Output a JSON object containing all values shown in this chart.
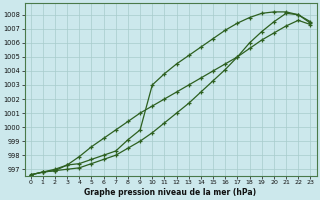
{
  "xlabel": "Graphe pression niveau de la mer (hPa)",
  "bg_color": "#cce8ec",
  "grid_color": "#a8cccc",
  "line_color": "#2d6020",
  "x_ticks": [
    0,
    1,
    2,
    3,
    4,
    5,
    6,
    7,
    8,
    9,
    10,
    11,
    12,
    13,
    14,
    15,
    16,
    17,
    18,
    19,
    20,
    21,
    22,
    23
  ],
  "ylim": [
    996.5,
    1008.8
  ],
  "yticks": [
    997,
    998,
    999,
    1000,
    1001,
    1002,
    1003,
    1004,
    1005,
    1006,
    1007,
    1008
  ],
  "series1": [
    996.6,
    996.8,
    996.9,
    997.0,
    997.1,
    997.4,
    997.7,
    998.0,
    998.5,
    999.0,
    999.6,
    1000.3,
    1001.0,
    1001.7,
    1002.5,
    1003.3,
    1004.1,
    1005.0,
    1006.0,
    1006.8,
    1007.5,
    1008.1,
    1008.0,
    1007.5
  ],
  "series2": [
    996.6,
    996.8,
    996.9,
    997.3,
    997.9,
    998.6,
    999.2,
    999.8,
    1000.4,
    1001.0,
    1001.5,
    1002.0,
    1002.5,
    1003.0,
    1003.5,
    1004.0,
    1004.5,
    1005.0,
    1005.6,
    1006.2,
    1006.7,
    1007.2,
    1007.6,
    1007.3
  ],
  "series3": [
    996.6,
    996.8,
    997.0,
    997.3,
    997.4,
    997.7,
    998.0,
    998.3,
    999.1,
    999.8,
    1003.0,
    1003.8,
    1004.5,
    1005.1,
    1005.7,
    1006.3,
    1006.9,
    1007.4,
    1007.8,
    1008.1,
    1008.2,
    1008.2,
    1008.0,
    1007.4
  ]
}
